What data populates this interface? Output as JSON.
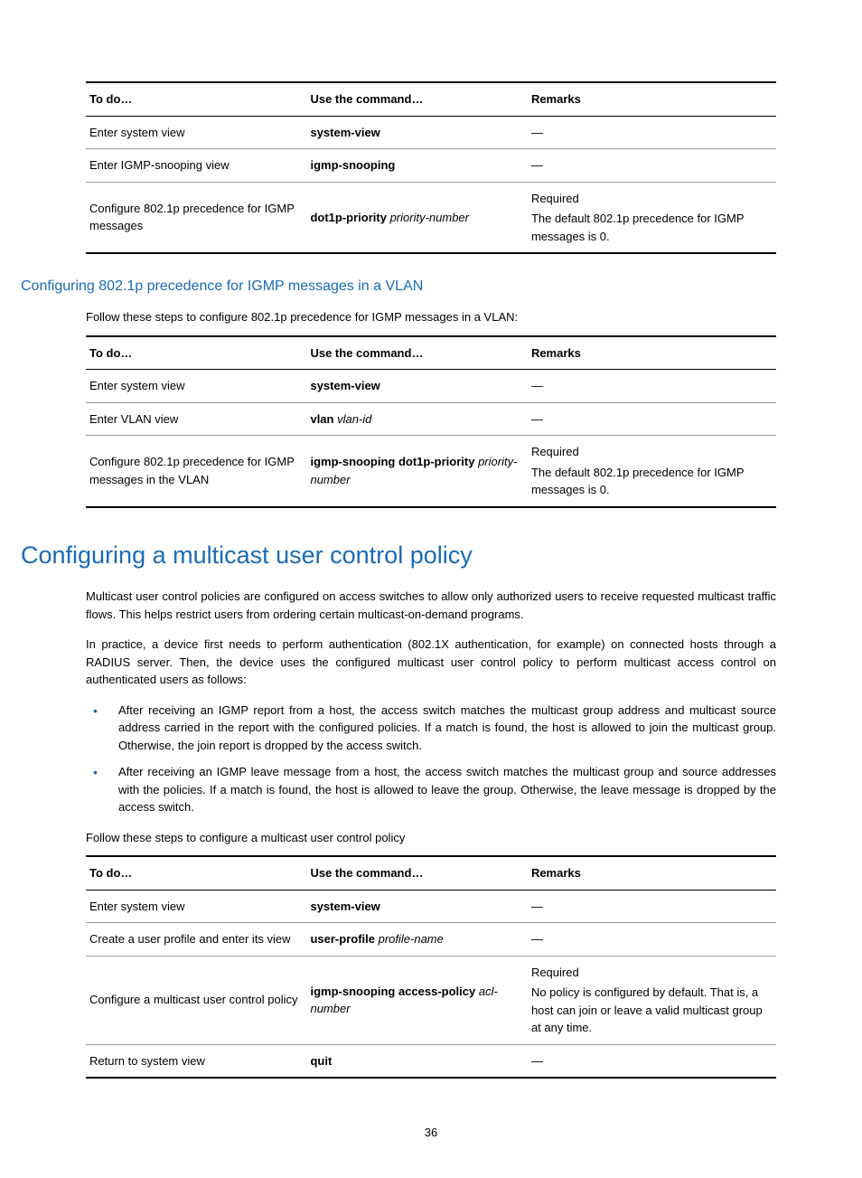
{
  "tables": {
    "global": {
      "headers": {
        "todo": "To do…",
        "cmd": "Use the command…",
        "remarks": "Remarks"
      },
      "rows": [
        {
          "todo": "Enter system view",
          "cmd_bold": "system-view",
          "cmd_italic": "",
          "remarks_req": "",
          "remarks_text": "—"
        },
        {
          "todo": "Enter IGMP-snooping view",
          "cmd_bold": "igmp-snooping",
          "cmd_italic": "",
          "remarks_req": "",
          "remarks_text": "—"
        },
        {
          "todo": "Configure 802.1p precedence for IGMP messages",
          "cmd_bold": "dot1p-priority",
          "cmd_italic": " priority-number",
          "remarks_req": "Required",
          "remarks_text": "The default 802.1p precedence for IGMP messages is 0."
        }
      ]
    },
    "vlan": {
      "intro": "Follow these steps to configure 802.1p precedence for IGMP messages in a VLAN:",
      "headers": {
        "todo": "To do…",
        "cmd": "Use the command…",
        "remarks": "Remarks"
      },
      "rows": [
        {
          "todo": "Enter system view",
          "cmd_bold": "system-view",
          "cmd_italic": "",
          "remarks_req": "",
          "remarks_text": "—"
        },
        {
          "todo": "Enter VLAN view",
          "cmd_bold": "vlan",
          "cmd_italic": " vlan-id",
          "remarks_req": "",
          "remarks_text": "—"
        },
        {
          "todo": "Configure 802.1p precedence for IGMP messages in the VLAN",
          "cmd_bold": "igmp-snooping dot1p-priority",
          "cmd_italic": " priority-number",
          "remarks_req": "Required",
          "remarks_text": "The default 802.1p precedence for IGMP messages is 0."
        }
      ]
    },
    "policy": {
      "intro": "Follow these steps to configure a multicast user control policy",
      "headers": {
        "todo": "To do…",
        "cmd": "Use the command…",
        "remarks": "Remarks"
      },
      "rows": [
        {
          "todo": "Enter system view",
          "cmd_bold": "system-view",
          "cmd_italic": "",
          "remarks_req": "",
          "remarks_text": "—"
        },
        {
          "todo": "Create a user profile and enter its view",
          "cmd_bold": "user-profile",
          "cmd_italic": " profile-name",
          "remarks_req": "",
          "remarks_text": "—"
        },
        {
          "todo": "Configure a multicast user control policy",
          "cmd_bold": "igmp-snooping access-policy",
          "cmd_italic": " acl-number",
          "remarks_req": "Required",
          "remarks_text": "No policy is configured by default. That is, a host can join or leave a valid multicast group at any time."
        },
        {
          "todo": "Return to system view",
          "cmd_bold": "quit",
          "cmd_italic": "",
          "remarks_req": "",
          "remarks_text": "—"
        }
      ]
    }
  },
  "subsection_title": "Configuring 802.1p precedence for IGMP messages in a VLAN",
  "section_title": "Configuring a multicast user control policy",
  "paragraphs": {
    "p1": "Multicast user control policies are configured on access switches to allow only authorized users to receive requested multicast traffic flows. This helps restrict users from ordering certain multicast-on-demand programs.",
    "p2": "In practice, a device first needs to perform authentication (802.1X authentication, for example) on connected hosts through a RADIUS server. Then, the device uses the configured multicast user control policy to perform multicast access control on authenticated users as follows:"
  },
  "bullets": {
    "b1": "After receiving an IGMP report from a host, the access switch matches the multicast group address and multicast source address carried in the report with the configured policies. If a match is found, the host is allowed to join the multicast group. Otherwise, the join report is dropped by the access switch.",
    "b2": "After receiving an IGMP leave message from a host, the access switch matches the multicast group and source addresses with the policies. If a match is found, the host is allowed to leave the group. Otherwise, the leave message is dropped by the access switch."
  },
  "page_number": "36"
}
